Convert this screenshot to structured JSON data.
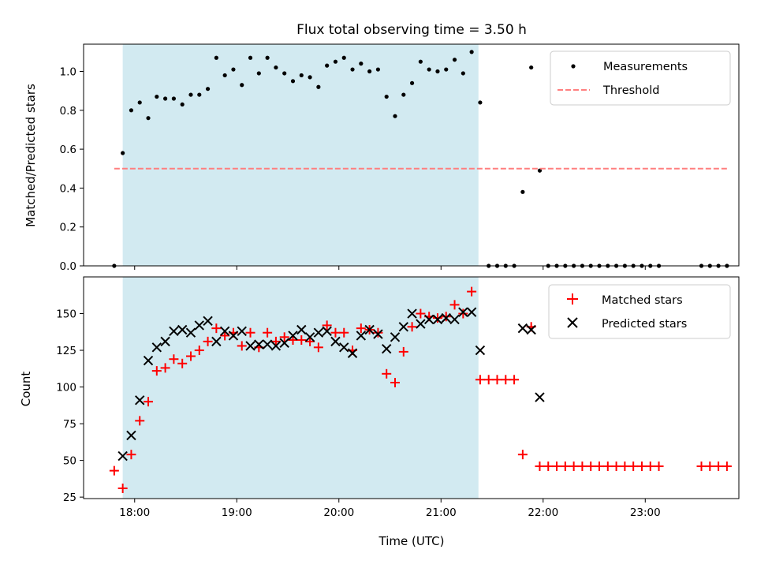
{
  "chart_data": [
    {
      "type": "scatter",
      "title": "Flux total observing time = 3.50 h",
      "xlabel": "",
      "ylabel": "Matched/Predicted stars",
      "ylim": [
        0,
        1.14
      ],
      "xlim": [
        "17:30",
        "23:55"
      ],
      "x_ticks": [
        "18:00",
        "19:00",
        "20:00",
        "21:00",
        "22:00",
        "23:00"
      ],
      "x_tick_labels_shown": false,
      "y_ticks": [
        "0.0",
        "0.2",
        "0.4",
        "0.6",
        "0.8",
        "1.0"
      ],
      "grid": false,
      "legend_position": "upper right",
      "shaded_interval": {
        "start": "17:53",
        "end": "21:22",
        "color": "#add8e6"
      },
      "series": [
        {
          "name": "Measurements",
          "marker": "dot",
          "color": "#000000",
          "points": [
            [
              "17:48",
              0.0
            ],
            [
              "17:53",
              0.58
            ],
            [
              "17:58",
              0.8
            ],
            [
              "18:03",
              0.84
            ],
            [
              "18:08",
              0.76
            ],
            [
              "18:13",
              0.87
            ],
            [
              "18:18",
              0.86
            ],
            [
              "18:23",
              0.86
            ],
            [
              "18:28",
              0.83
            ],
            [
              "18:33",
              0.88
            ],
            [
              "18:38",
              0.88
            ],
            [
              "18:43",
              0.91
            ],
            [
              "18:48",
              1.07
            ],
            [
              "18:53",
              0.98
            ],
            [
              "18:58",
              1.01
            ],
            [
              "19:03",
              0.93
            ],
            [
              "19:08",
              1.07
            ],
            [
              "19:13",
              0.99
            ],
            [
              "19:18",
              1.07
            ],
            [
              "19:23",
              1.02
            ],
            [
              "19:28",
              0.99
            ],
            [
              "19:33",
              0.95
            ],
            [
              "19:38",
              0.98
            ],
            [
              "19:43",
              0.97
            ],
            [
              "19:48",
              0.92
            ],
            [
              "19:53",
              1.03
            ],
            [
              "19:58",
              1.05
            ],
            [
              "20:03",
              1.07
            ],
            [
              "20:08",
              1.01
            ],
            [
              "20:13",
              1.04
            ],
            [
              "20:18",
              1.0
            ],
            [
              "20:23",
              1.01
            ],
            [
              "20:28",
              0.87
            ],
            [
              "20:33",
              0.77
            ],
            [
              "20:38",
              0.88
            ],
            [
              "20:43",
              0.94
            ],
            [
              "20:48",
              1.05
            ],
            [
              "20:53",
              1.01
            ],
            [
              "20:58",
              1.0
            ],
            [
              "21:03",
              1.01
            ],
            [
              "21:08",
              1.06
            ],
            [
              "21:13",
              0.99
            ],
            [
              "21:18",
              1.1
            ],
            [
              "21:23",
              0.84
            ],
            [
              "21:28",
              0.0
            ],
            [
              "21:33",
              0.0
            ],
            [
              "21:38",
              0.0
            ],
            [
              "21:43",
              0.0
            ],
            [
              "21:48",
              0.38
            ],
            [
              "21:53",
              1.02
            ],
            [
              "21:58",
              0.49
            ],
            [
              "22:03",
              0.0
            ],
            [
              "22:08",
              0.0
            ],
            [
              "22:13",
              0.0
            ],
            [
              "22:18",
              0.0
            ],
            [
              "22:23",
              0.0
            ],
            [
              "22:28",
              0.0
            ],
            [
              "22:33",
              0.0
            ],
            [
              "22:38",
              0.0
            ],
            [
              "22:43",
              0.0
            ],
            [
              "22:48",
              0.0
            ],
            [
              "22:53",
              0.0
            ],
            [
              "22:58",
              0.0
            ],
            [
              "23:03",
              0.0
            ],
            [
              "23:08",
              0.0
            ],
            [
              "23:33",
              0.0
            ],
            [
              "23:38",
              0.0
            ],
            [
              "23:43",
              0.0
            ],
            [
              "23:48",
              0.0
            ]
          ]
        },
        {
          "name": "Threshold",
          "marker": "dashed-line",
          "color": "#ff7f7f",
          "points": [
            [
              "17:48",
              0.5
            ],
            [
              "23:48",
              0.5
            ]
          ]
        }
      ]
    },
    {
      "type": "scatter",
      "title": "",
      "xlabel": "Time (UTC)",
      "ylabel": "Count",
      "ylim": [
        24,
        175
      ],
      "xlim": [
        "17:30",
        "23:55"
      ],
      "x_ticks": [
        "18:00",
        "19:00",
        "20:00",
        "21:00",
        "22:00",
        "23:00"
      ],
      "y_ticks": [
        "25",
        "50",
        "75",
        "100",
        "125",
        "150"
      ],
      "grid": false,
      "legend_position": "upper right",
      "shaded_interval": {
        "start": "17:53",
        "end": "21:22",
        "color": "#add8e6"
      },
      "series": [
        {
          "name": "Matched stars",
          "marker": "plus",
          "color": "#ff0000",
          "points": [
            [
              "17:48",
              43
            ],
            [
              "17:53",
              31
            ],
            [
              "17:58",
              54
            ],
            [
              "18:03",
              77
            ],
            [
              "18:08",
              90
            ],
            [
              "18:13",
              111
            ],
            [
              "18:18",
              113
            ],
            [
              "18:23",
              119
            ],
            [
              "18:28",
              116
            ],
            [
              "18:33",
              121
            ],
            [
              "18:38",
              125
            ],
            [
              "18:43",
              131
            ],
            [
              "18:48",
              140
            ],
            [
              "18:53",
              135
            ],
            [
              "18:58",
              137
            ],
            [
              "19:03",
              128
            ],
            [
              "19:08",
              137
            ],
            [
              "19:13",
              127
            ],
            [
              "19:18",
              137
            ],
            [
              "19:23",
              131
            ],
            [
              "19:28",
              134
            ],
            [
              "19:33",
              132
            ],
            [
              "19:38",
              132
            ],
            [
              "19:43",
              131
            ],
            [
              "19:48",
              127
            ],
            [
              "19:53",
              142
            ],
            [
              "19:58",
              137
            ],
            [
              "20:03",
              137
            ],
            [
              "20:08",
              125
            ],
            [
              "20:13",
              140
            ],
            [
              "20:18",
              139
            ],
            [
              "20:23",
              137
            ],
            [
              "20:28",
              109
            ],
            [
              "20:33",
              103
            ],
            [
              "20:38",
              124
            ],
            [
              "20:43",
              141
            ],
            [
              "20:48",
              150
            ],
            [
              "20:53",
              148
            ],
            [
              "20:58",
              147
            ],
            [
              "21:03",
              148
            ],
            [
              "21:08",
              156
            ],
            [
              "21:13",
              150
            ],
            [
              "21:18",
              165
            ],
            [
              "21:23",
              105
            ],
            [
              "21:28",
              105
            ],
            [
              "21:33",
              105
            ],
            [
              "21:38",
              105
            ],
            [
              "21:43",
              105
            ],
            [
              "21:48",
              54
            ],
            [
              "21:53",
              141
            ],
            [
              "21:58",
              46
            ],
            [
              "22:03",
              46
            ],
            [
              "22:08",
              46
            ],
            [
              "22:13",
              46
            ],
            [
              "22:18",
              46
            ],
            [
              "22:23",
              46
            ],
            [
              "22:28",
              46
            ],
            [
              "22:33",
              46
            ],
            [
              "22:38",
              46
            ],
            [
              "22:43",
              46
            ],
            [
              "22:48",
              46
            ],
            [
              "22:53",
              46
            ],
            [
              "22:58",
              46
            ],
            [
              "23:03",
              46
            ],
            [
              "23:08",
              46
            ],
            [
              "23:33",
              46
            ],
            [
              "23:38",
              46
            ],
            [
              "23:43",
              46
            ],
            [
              "23:48",
              46
            ]
          ]
        },
        {
          "name": "Predicted stars",
          "marker": "x",
          "color": "#000000",
          "points": [
            [
              "17:53",
              53
            ],
            [
              "17:58",
              67
            ],
            [
              "18:03",
              91
            ],
            [
              "18:08",
              118
            ],
            [
              "18:13",
              127
            ],
            [
              "18:18",
              131
            ],
            [
              "18:23",
              138
            ],
            [
              "18:28",
              139
            ],
            [
              "18:33",
              137
            ],
            [
              "18:38",
              142
            ],
            [
              "18:43",
              145
            ],
            [
              "18:48",
              131
            ],
            [
              "18:53",
              138
            ],
            [
              "18:58",
              135
            ],
            [
              "19:03",
              138
            ],
            [
              "19:08",
              128
            ],
            [
              "19:13",
              129
            ],
            [
              "19:18",
              129
            ],
            [
              "19:23",
              128
            ],
            [
              "19:28",
              130
            ],
            [
              "19:33",
              135
            ],
            [
              "19:38",
              139
            ],
            [
              "19:43",
              134
            ],
            [
              "19:48",
              137
            ],
            [
              "19:53",
              138
            ],
            [
              "19:58",
              131
            ],
            [
              "20:03",
              127
            ],
            [
              "20:08",
              123
            ],
            [
              "20:13",
              135
            ],
            [
              "20:18",
              139
            ],
            [
              "20:23",
              136
            ],
            [
              "20:28",
              126
            ],
            [
              "20:33",
              134
            ],
            [
              "20:38",
              141
            ],
            [
              "20:43",
              150
            ],
            [
              "20:48",
              143
            ],
            [
              "20:53",
              146
            ],
            [
              "20:58",
              146
            ],
            [
              "21:03",
              147
            ],
            [
              "21:08",
              146
            ],
            [
              "21:13",
              151
            ],
            [
              "21:18",
              151
            ],
            [
              "21:23",
              125
            ],
            [
              "21:48",
              140
            ],
            [
              "21:53",
              139
            ],
            [
              "21:58",
              93
            ]
          ]
        }
      ]
    }
  ]
}
